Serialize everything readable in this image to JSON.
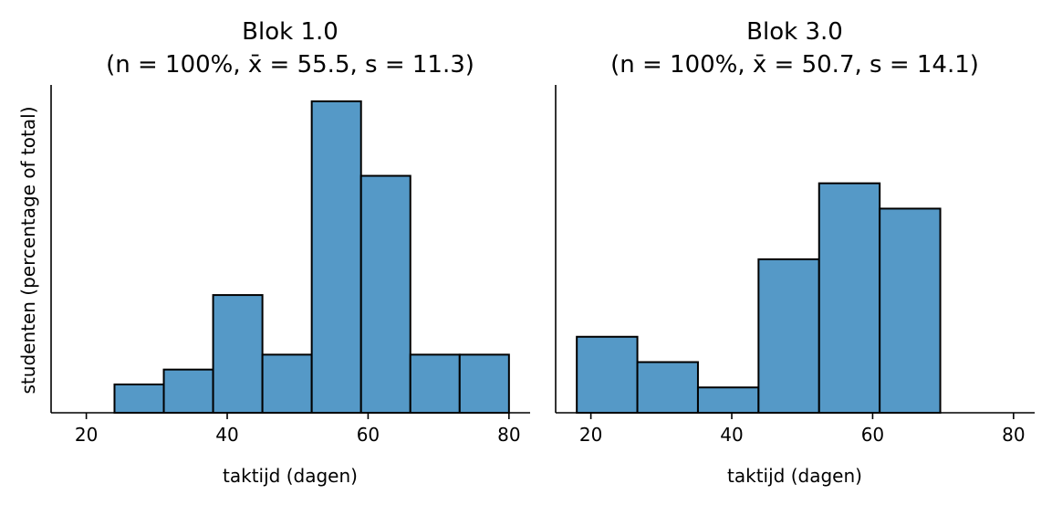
{
  "ylabel": "studenten (percentage of total)",
  "colors": {
    "bar": "#5599c7",
    "edge": "#000000"
  },
  "chart_data": [
    {
      "type": "bar",
      "title_line1": "Blok 1.0",
      "title_line2": "(n = 100%, x̄ = 55.5, s = 11.3)",
      "xlabel": "taktijd (dagen)",
      "ylabel": "studenten (percentage of total)",
      "xlim": [
        15,
        83
      ],
      "ylim": [
        0,
        0.22
      ],
      "xticks": [
        20,
        40,
        60,
        80
      ],
      "bins": [
        {
          "x0": 24,
          "x1": 31,
          "value": 0.019
        },
        {
          "x0": 31,
          "x1": 38,
          "value": 0.029
        },
        {
          "x0": 38,
          "x1": 45,
          "value": 0.079
        },
        {
          "x0": 45,
          "x1": 52,
          "value": 0.039
        },
        {
          "x0": 52,
          "x1": 59,
          "value": 0.209
        },
        {
          "x0": 59,
          "x1": 66,
          "value": 0.159
        },
        {
          "x0": 66,
          "x1": 73,
          "value": 0.039
        },
        {
          "x0": 73,
          "x1": 80,
          "value": 0.039
        }
      ]
    },
    {
      "type": "bar",
      "title_line1": "Blok 3.0",
      "title_line2": "(n = 100%, x̄ = 50.7, s = 14.1)",
      "xlabel": "taktijd (dagen)",
      "ylabel": "",
      "xlim": [
        15,
        83
      ],
      "ylim": [
        0,
        0.22
      ],
      "xticks": [
        20,
        40,
        60,
        80
      ],
      "bins": [
        {
          "x0": 18,
          "x1": 26.6,
          "value": 0.051
        },
        {
          "x0": 26.6,
          "x1": 35.2,
          "value": 0.034
        },
        {
          "x0": 35.2,
          "x1": 43.8,
          "value": 0.017
        },
        {
          "x0": 43.8,
          "x1": 52.4,
          "value": 0.103
        },
        {
          "x0": 52.4,
          "x1": 61,
          "value": 0.154
        },
        {
          "x0": 61,
          "x1": 69.6,
          "value": 0.137
        }
      ]
    }
  ]
}
